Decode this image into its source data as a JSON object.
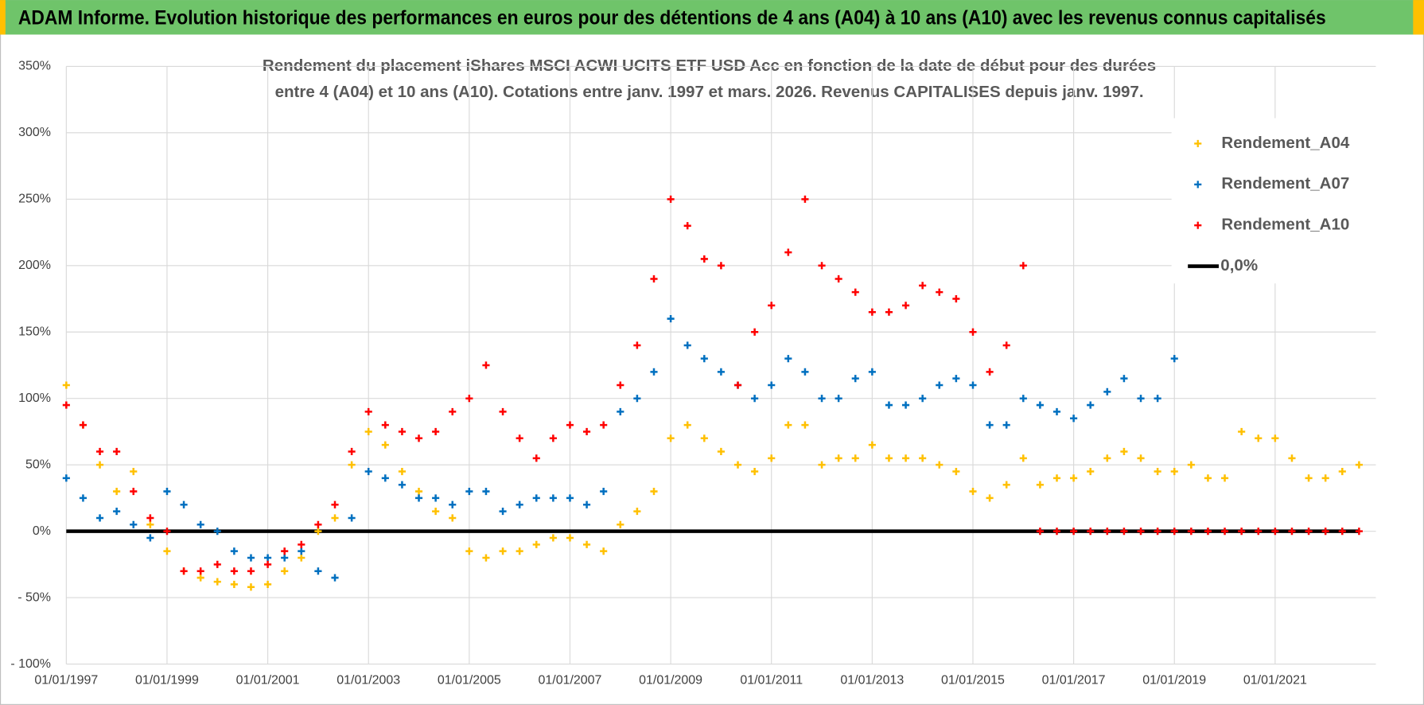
{
  "header": {
    "title": "ADAM Informe. Evolution historique des performances en euros pour des détentions de 4 ans (A04) à 10 ans (A10) avec les revenus connus capitalisés"
  },
  "chart_data": {
    "type": "scatter",
    "title": [
      "Rendement du placement iShares MSCI ACWI UCITS ETF USD Acc en fonction de la date de début pour des durées",
      "entre 4 (A04) et 10 ans (A10). Cotations entre janv. 1997 et mars. 2026. Revenus CAPITALISES depuis janv. 1997."
    ],
    "x": [
      "1997-01-01",
      "1997-05-01",
      "1997-09-01",
      "1998-01-01",
      "1998-05-01",
      "1998-09-01",
      "1999-01-01",
      "1999-05-01",
      "1999-09-01",
      "2000-01-01",
      "2000-05-01",
      "2000-09-01",
      "2001-01-01",
      "2001-05-01",
      "2001-09-01",
      "2002-01-01",
      "2002-05-01",
      "2002-09-01",
      "2003-01-01",
      "2003-05-01",
      "2003-09-01",
      "2004-01-01",
      "2004-05-01",
      "2004-09-01",
      "2005-01-01",
      "2005-05-01",
      "2005-09-01",
      "2006-01-01",
      "2006-05-01",
      "2006-09-01",
      "2007-01-01",
      "2007-05-01",
      "2007-09-01",
      "2008-01-01",
      "2008-05-01",
      "2008-09-01",
      "2009-01-01",
      "2009-05-01",
      "2009-09-01",
      "2010-01-01",
      "2010-05-01",
      "2010-09-01",
      "2011-01-01",
      "2011-05-01",
      "2011-09-01",
      "2012-01-01",
      "2012-05-01",
      "2012-09-01",
      "2013-01-01",
      "2013-05-01",
      "2013-09-01",
      "2014-01-01",
      "2014-05-01",
      "2014-09-01",
      "2015-01-01",
      "2015-05-01",
      "2015-09-01",
      "2016-01-01",
      "2016-05-01",
      "2016-09-01",
      "2017-01-01",
      "2017-05-01",
      "2017-09-01",
      "2018-01-01",
      "2018-05-01",
      "2018-09-01",
      "2019-01-01",
      "2019-05-01",
      "2019-09-01",
      "2020-01-01",
      "2020-05-01",
      "2020-09-01",
      "2021-01-01",
      "2021-05-01",
      "2021-09-01",
      "2022-01-01",
      "2022-05-01",
      "2022-09-01"
    ],
    "series": [
      {
        "name": "Rendement_A04",
        "type": "scatter",
        "color": "#ffc000",
        "values": [
          110,
          80,
          50,
          30,
          45,
          5,
          -15,
          -30,
          -35,
          -38,
          -40,
          -42,
          -40,
          -30,
          -20,
          0,
          10,
          50,
          75,
          65,
          45,
          30,
          15,
          10,
          -15,
          -20,
          -15,
          -15,
          -10,
          -5,
          -5,
          -10,
          -15,
          5,
          15,
          30,
          70,
          80,
          70,
          60,
          50,
          45,
          55,
          80,
          80,
          50,
          55,
          55,
          65,
          55,
          55,
          55,
          50,
          45,
          30,
          25,
          35,
          55,
          35,
          40,
          40,
          45,
          55,
          60,
          55,
          45,
          45,
          50,
          40,
          40,
          75,
          70,
          70,
          55,
          40,
          40,
          45,
          50
        ]
      },
      {
        "name": "Rendement_A07",
        "type": "scatter",
        "color": "#0070c0",
        "values": [
          40,
          25,
          10,
          15,
          5,
          -5,
          30,
          20,
          5,
          0,
          -15,
          -20,
          -20,
          -20,
          -15,
          -30,
          -35,
          10,
          45,
          40,
          35,
          25,
          25,
          20,
          30,
          30,
          15,
          20,
          25,
          25,
          25,
          20,
          30,
          90,
          100,
          120,
          160,
          140,
          130,
          120,
          110,
          100,
          110,
          130,
          120,
          100,
          100,
          115,
          120,
          95,
          95,
          100,
          110,
          115,
          110,
          80,
          80,
          100,
          95,
          90,
          85,
          95,
          105,
          115,
          100,
          100,
          130,
          null,
          null,
          null,
          null,
          null,
          null,
          null,
          null,
          null,
          null,
          null
        ]
      },
      {
        "name": "Rendement_A10",
        "type": "scatter",
        "color": "#ff0000",
        "values": [
          95,
          80,
          60,
          60,
          30,
          10,
          0,
          -30,
          -30,
          -25,
          -30,
          -30,
          -25,
          -15,
          -10,
          5,
          20,
          60,
          90,
          80,
          75,
          70,
          75,
          90,
          100,
          125,
          90,
          70,
          55,
          70,
          80,
          75,
          80,
          110,
          140,
          190,
          250,
          230,
          205,
          200,
          110,
          150,
          170,
          210,
          250,
          200,
          190,
          180,
          165,
          165,
          170,
          185,
          180,
          175,
          150,
          120,
          140,
          200,
          0,
          0,
          0,
          0,
          0,
          0,
          0,
          0,
          0,
          0,
          0,
          0,
          0,
          0,
          0,
          0,
          0,
          0,
          0,
          0
        ]
      },
      {
        "name": "0,0%",
        "type": "line",
        "color": "#000000",
        "values": [
          0,
          0,
          0,
          0,
          0,
          0,
          0,
          0,
          0,
          0,
          0,
          0,
          0,
          0,
          0,
          0,
          0,
          0,
          0,
          0,
          0,
          0,
          0,
          0,
          0,
          0,
          0,
          0,
          0,
          0,
          0,
          0,
          0,
          0,
          0,
          0,
          0,
          0,
          0,
          0,
          0,
          0,
          0,
          0,
          0,
          0,
          0,
          0,
          0,
          0,
          0,
          0,
          0,
          0,
          0,
          0,
          0,
          0,
          0,
          0,
          0,
          0,
          0,
          0,
          0,
          0,
          0,
          0,
          0,
          0,
          0,
          0,
          0,
          0,
          0,
          0,
          0,
          0
        ]
      }
    ],
    "xlim": [
      "1997-01-01",
      "2023-01-01"
    ],
    "xticks": [
      {
        "value": "1997-01-01",
        "label": "01/01/1997"
      },
      {
        "value": "1999-01-01",
        "label": "01/01/1999"
      },
      {
        "value": "2001-01-01",
        "label": "01/01/2001"
      },
      {
        "value": "2003-01-01",
        "label": "01/01/2003"
      },
      {
        "value": "2005-01-01",
        "label": "01/01/2005"
      },
      {
        "value": "2007-01-01",
        "label": "01/01/2007"
      },
      {
        "value": "2009-01-01",
        "label": "01/01/2009"
      },
      {
        "value": "2011-01-01",
        "label": "01/01/2011"
      },
      {
        "value": "2013-01-01",
        "label": "01/01/2013"
      },
      {
        "value": "2015-01-01",
        "label": "01/01/2015"
      },
      {
        "value": "2017-01-01",
        "label": "01/01/2017"
      },
      {
        "value": "2019-01-01",
        "label": "01/01/2019"
      },
      {
        "value": "2021-01-01",
        "label": "01/01/2021"
      }
    ],
    "ylim": [
      -100,
      350
    ],
    "yticks": [
      {
        "value": -100,
        "label": "- 100%"
      },
      {
        "value": -50,
        "label": "- 50%"
      },
      {
        "value": 0,
        "label": "0%"
      },
      {
        "value": 50,
        "label": "50%"
      },
      {
        "value": 100,
        "label": "100%"
      },
      {
        "value": 150,
        "label": "150%"
      },
      {
        "value": 200,
        "label": "200%"
      },
      {
        "value": 250,
        "label": "250%"
      },
      {
        "value": 300,
        "label": "300%"
      },
      {
        "value": 350,
        "label": "350%"
      }
    ],
    "grid": true,
    "legend": "top-right"
  }
}
